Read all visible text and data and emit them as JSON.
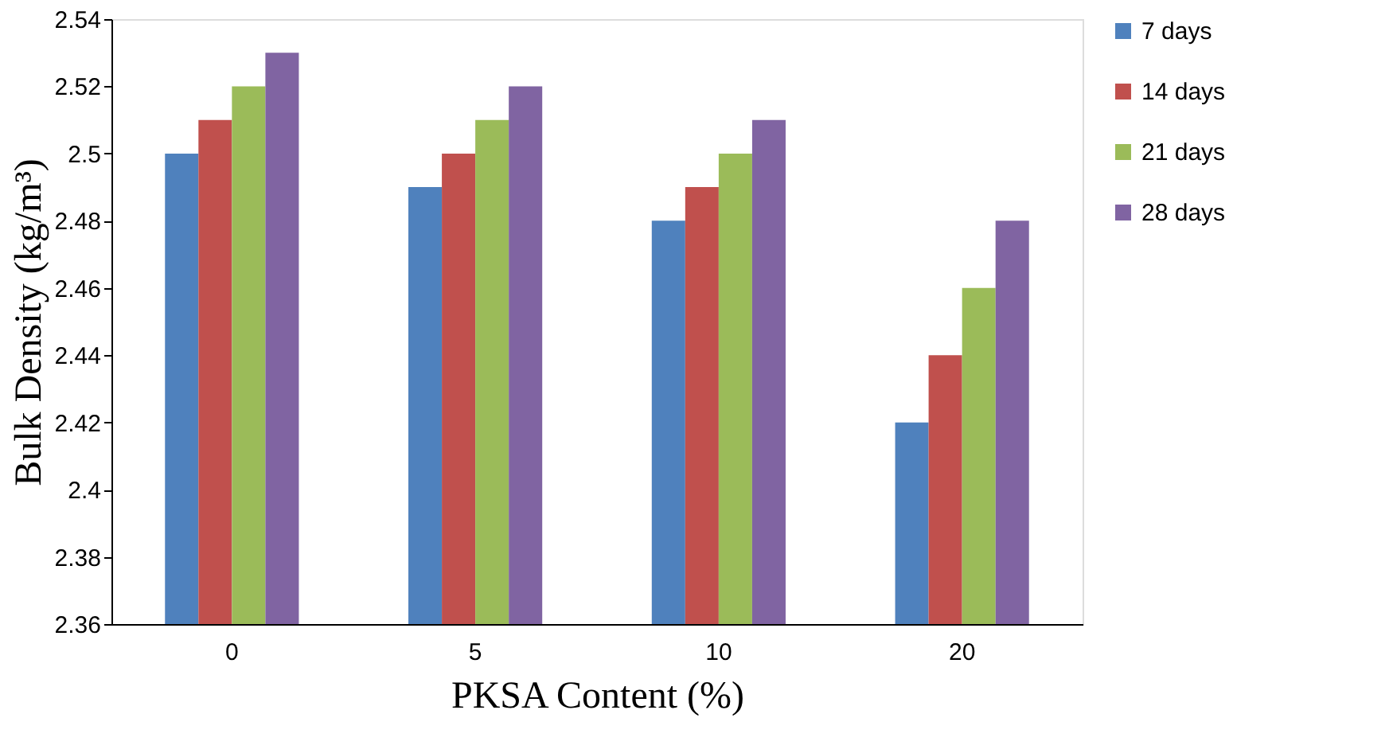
{
  "chart_data": {
    "type": "bar",
    "xlabel": "PKSA Content  (%)",
    "ylabel": "Bulk Density (kg/m³)",
    "categories": [
      "0",
      "5",
      "10",
      "20"
    ],
    "series": [
      {
        "name": "7 days",
        "color": "#4f81bd",
        "values": [
          2.5,
          2.49,
          2.48,
          2.42
        ]
      },
      {
        "name": "14 days",
        "color": "#c0504d",
        "values": [
          2.51,
          2.5,
          2.49,
          2.44
        ]
      },
      {
        "name": "21 days",
        "color": "#9bbb59",
        "values": [
          2.52,
          2.51,
          2.5,
          2.46
        ]
      },
      {
        "name": "28 days",
        "color": "#8064a2",
        "values": [
          2.53,
          2.52,
          2.51,
          2.48
        ]
      }
    ],
    "ylim": [
      2.36,
      2.54
    ],
    "yticks": [
      2.36,
      2.38,
      2.4,
      2.42,
      2.44,
      2.46,
      2.48,
      2.5,
      2.52,
      2.54
    ],
    "grid": false,
    "legend": "right"
  }
}
